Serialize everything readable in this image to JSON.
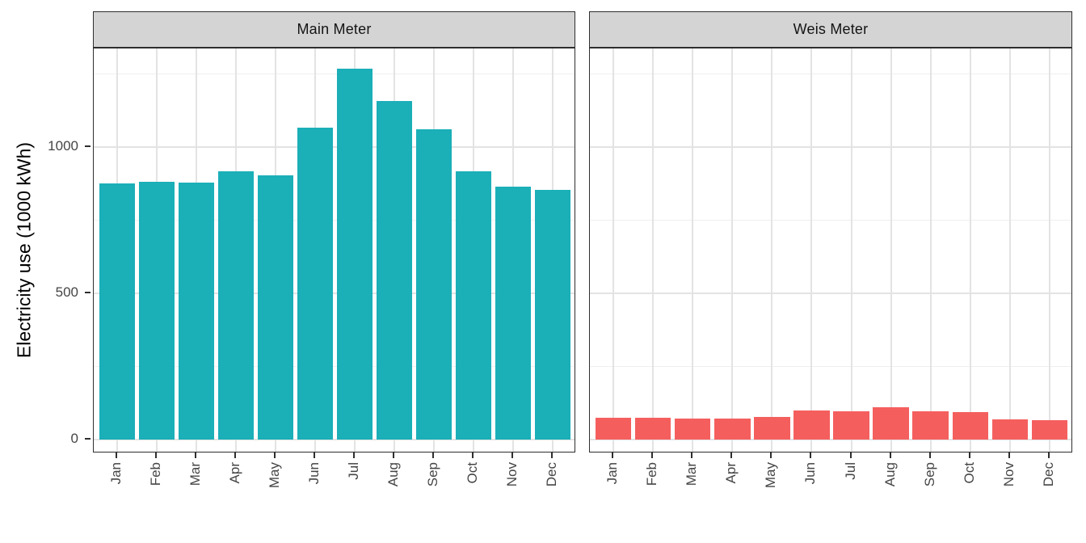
{
  "chart_data": {
    "type": "bar",
    "title": "",
    "xlabel": "",
    "ylabel": "Electricity use (1000 kWh)",
    "categories": [
      "Jan",
      "Feb",
      "Mar",
      "Apr",
      "May",
      "Jun",
      "Jul",
      "Aug",
      "Sep",
      "Oct",
      "Nov",
      "Dec"
    ],
    "y_major_ticks": [
      0,
      500,
      1000
    ],
    "y_minor_gridlines": [
      250,
      750,
      1250
    ],
    "ylim": [
      -48,
      1337
    ],
    "grid": true,
    "legend": "none",
    "facet_layout": "columns",
    "facets": [
      {
        "label": "Main Meter",
        "bar_color": "#1bafb8",
        "values": [
          875,
          880,
          878,
          918,
          902,
          1066,
          1268,
          1158,
          1062,
          918,
          866,
          854
        ]
      },
      {
        "label": "Weis Meter",
        "bar_color": "#f45f5e",
        "values": [
          73,
          74,
          70,
          72,
          77,
          99,
          95,
          111,
          97,
          92,
          69,
          66
        ]
      }
    ],
    "colors": {
      "panel_background": "#ffffff",
      "strip_background": "#d4d4d4",
      "border": "#2e2e2e",
      "grid_major": "#e3e3e3",
      "grid_minor": "#efefef",
      "tick_label": "#454545",
      "axis_title": "#000000"
    }
  }
}
